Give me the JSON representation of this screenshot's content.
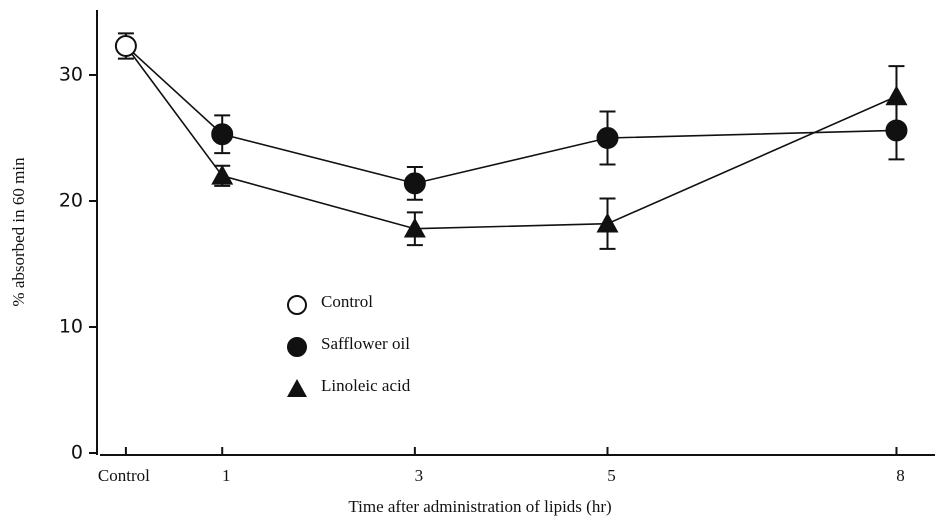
{
  "chart_data": {
    "type": "line",
    "x_label": "Time after administration of lipids (hr)",
    "y_label": "% absorbed in 60 min",
    "xlim": [
      -0.3,
      8.4
    ],
    "ylim": [
      0,
      35
    ],
    "xticks": [
      {
        "value": 0,
        "label": "Control"
      },
      1,
      3,
      5,
      8
    ],
    "yticks": [
      0,
      10,
      20,
      30
    ],
    "series": [
      {
        "name": "Control",
        "color": "#111111",
        "marker": "open-circle",
        "x": [
          0
        ],
        "values": [
          32.3
        ],
        "errors": [
          1.0
        ]
      },
      {
        "name": "Safflower oil",
        "color": "#111111",
        "marker": "circle",
        "x": [
          1,
          3,
          5,
          8
        ],
        "values": [
          25.3,
          21.4,
          25.0,
          25.6
        ],
        "errors": [
          1.5,
          1.3,
          2.1,
          2.3
        ]
      },
      {
        "name": "Linoleic acid",
        "color": "#111111",
        "marker": "triangle",
        "x": [
          1,
          3,
          5,
          8
        ],
        "values": [
          22.0,
          17.8,
          18.2,
          28.3
        ],
        "errors": [
          0.8,
          1.3,
          2.0,
          2.4
        ]
      }
    ]
  }
}
